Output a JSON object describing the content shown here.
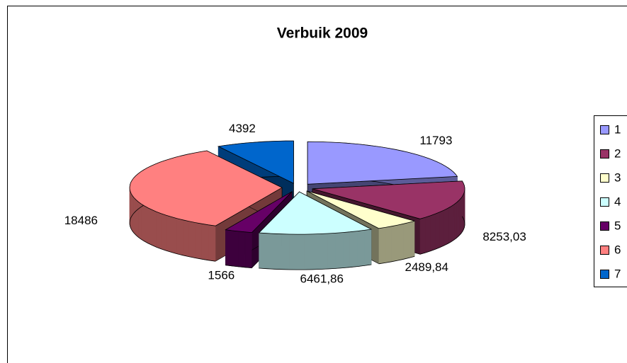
{
  "chart_data": {
    "type": "pie",
    "title": "Verbuik 2009",
    "categories": [
      "1",
      "2",
      "3",
      "4",
      "5",
      "6",
      "7"
    ],
    "values": [
      11793,
      8253.03,
      2489.84,
      6461.86,
      1566,
      18486,
      4392
    ],
    "value_labels": [
      "11793",
      "8253,03",
      "2489,84",
      "6461,86",
      "1566",
      "18486",
      "4392"
    ],
    "colors": [
      "#9999ff",
      "#993366",
      "#ffffcc",
      "#ccffff",
      "#660066",
      "#ff8080",
      "#0066cc"
    ],
    "legend": "right"
  }
}
